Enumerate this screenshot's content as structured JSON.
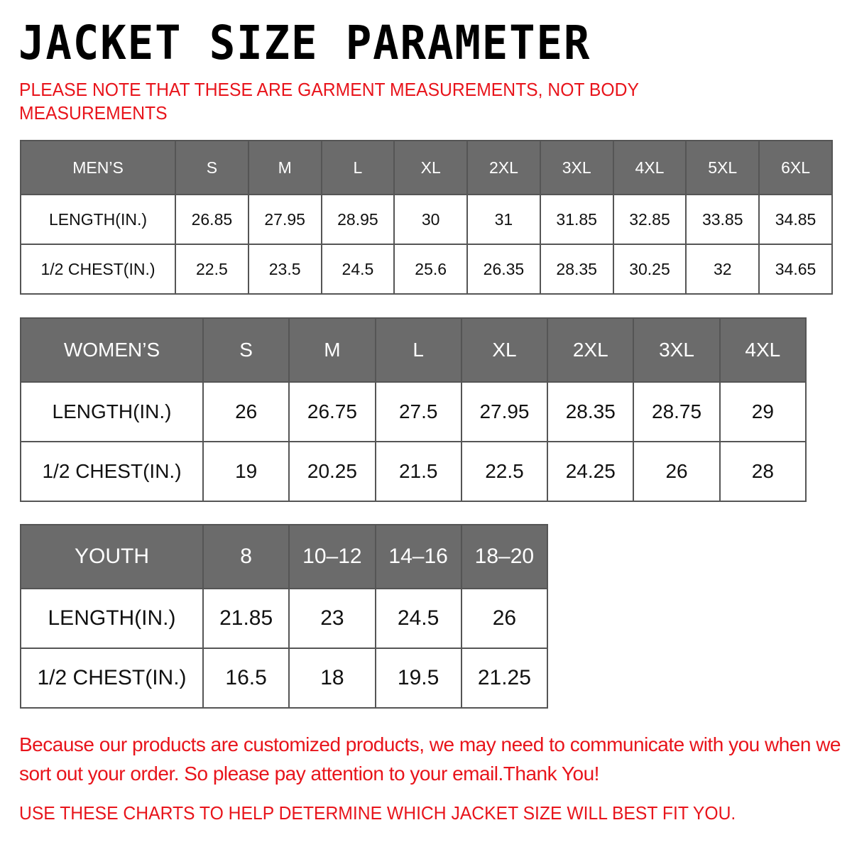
{
  "title": "JACKET SIZE PARAMETER",
  "note": "PLEASE NOTE THAT THESE ARE GARMENT MEASUREMENTS, NOT BODY MEASUREMENTS",
  "colors": {
    "header_bg": "#6b6b6b",
    "accent_red": "#e8141b"
  },
  "mens": {
    "header": [
      "MEN’S",
      "S",
      "M",
      "L",
      "XL",
      "2XL",
      "3XL",
      "4XL",
      "5XL",
      "6XL"
    ],
    "rows": [
      [
        "LENGTH(IN.)",
        "26.85",
        "27.95",
        "28.95",
        "30",
        "31",
        "31.85",
        "32.85",
        "33.85",
        "34.85"
      ],
      [
        "1/2 CHEST(IN.)",
        "22.5",
        "23.5",
        "24.5",
        "25.6",
        "26.35",
        "28.35",
        "30.25",
        "32",
        "34.65"
      ]
    ]
  },
  "womens": {
    "header": [
      "WOMEN’S",
      "S",
      "M",
      "L",
      "XL",
      "2XL",
      "3XL",
      "4XL"
    ],
    "rows": [
      [
        "LENGTH(IN.)",
        "26",
        "26.75",
        "27.5",
        "27.95",
        "28.35",
        "28.75",
        "29"
      ],
      [
        "1/2 CHEST(IN.)",
        "19",
        "20.25",
        "21.5",
        "22.5",
        "24.25",
        "26",
        "28"
      ]
    ]
  },
  "youth": {
    "header": [
      "YOUTH",
      "8",
      "10–12",
      "14–16",
      "18–20"
    ],
    "rows": [
      [
        "LENGTH(IN.)",
        "21.85",
        "23",
        "24.5",
        "26"
      ],
      [
        "1/2 CHEST(IN.)",
        "16.5",
        "18",
        "19.5",
        "21.25"
      ]
    ]
  },
  "message": "Because our products are customized products, we may need to communicate with you when we sort out your order. So please pay attention to your email.Thank You!",
  "footer": "USE THESE CHARTS TO HELP DETERMINE WHICH JACKET SIZE WILL BEST FIT YOU."
}
